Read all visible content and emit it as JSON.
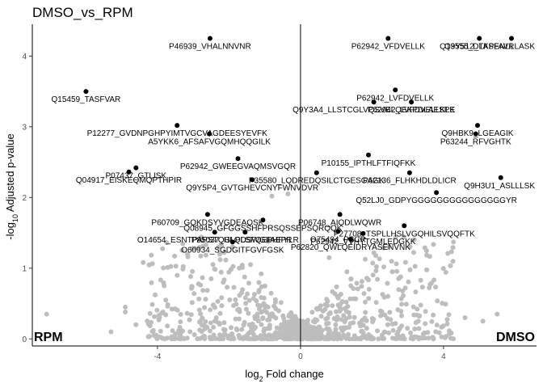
{
  "chart_data": {
    "type": "scatter",
    "title": "DMSO_vs_RPM",
    "xlabel": "log2 Fold change",
    "ylabel": "-log10 Adjusted p-value",
    "xlim": [
      -7.5,
      6.6
    ],
    "ylim": [
      -0.1,
      4.45
    ],
    "x_ticks": [
      -4,
      0,
      4
    ],
    "y_ticks": [
      0,
      1,
      2,
      3,
      4
    ],
    "grid": false,
    "vline_x": 0,
    "corner_left": "RPM",
    "corner_right": "DMSO",
    "colors": {
      "background": "#bdbdbd",
      "highlight": "#000000",
      "axis": "#000000"
    },
    "labeled_points": [
      {
        "label": "P46939_VHALNNVNR",
        "x": -2.53,
        "y": 4.25
      },
      {
        "label": "P62942_VFDVELLK",
        "x": 2.45,
        "y": 4.25
      },
      {
        "label": "Q9Y512_TASFAVR",
        "x": 5.0,
        "y": 4.25
      },
      {
        "label": "Q13555_DLKPENLLLASK",
        "x": 5.9,
        "y": 4.25
      },
      {
        "label": "Q15459_TASFVAR",
        "x": -6.0,
        "y": 3.5
      },
      {
        "label": "P62942_LVFDVELLK",
        "x": 2.65,
        "y": 3.52
      },
      {
        "label": "Q9Y3A4_LLSTCGLVQSVELQEKPDLAESPK",
        "x": 2.05,
        "y": 3.35
      },
      {
        "label": "P62942_LVFDVELLKLE",
        "x": 3.1,
        "y": 3.35
      },
      {
        "label": "P12277_GVDNPGHPYIMTVGCVAGDEESYEVFK",
        "x": -3.45,
        "y": 3.02
      },
      {
        "label": "Q9HBK9_LGEAGIK",
        "x": 4.95,
        "y": 3.02
      },
      {
        "label": "A5YKK6_AFSAFVGQMHQQGILK",
        "x": -2.55,
        "y": 2.9
      },
      {
        "label": "P63244_RFVGHTK",
        "x": 4.9,
        "y": 2.9
      },
      {
        "label": "P62942_GWEEGVAQMSVGQR",
        "x": -1.75,
        "y": 2.55
      },
      {
        "label": "P10155_IPTHLFTFIQFKK",
        "x": 1.9,
        "y": 2.6
      },
      {
        "label": "P62136_FLHKHDLDLICR",
        "x": 3.05,
        "y": 2.35
      },
      {
        "label": "P07437_GTLISK",
        "x": -4.6,
        "y": 2.42
      },
      {
        "label": "Q04917_EISKEQMQPTHPIR",
        "x": -4.8,
        "y": 2.36
      },
      {
        "label": "P35580_LQDREDQSILCTGESGAGK",
        "x": 0.45,
        "y": 2.35
      },
      {
        "label": "Q9H3U1_ASLLLSK",
        "x": 5.6,
        "y": 2.28
      },
      {
        "label": "Q9Y5P4_GVTGHEVCNYFWNVDVR",
        "x": -1.35,
        "y": 2.25
      },
      {
        "label": "Q52LJ0_GDPYGGGGGGGGGGGGGGGYR",
        "x": 3.8,
        "y": 2.07
      },
      {
        "label": "P60709_GQKDSYVGDEAQSK",
        "x": -2.6,
        "y": 1.76
      },
      {
        "label": "P06748_AIQDLWQWR",
        "x": 1.1,
        "y": 1.76
      },
      {
        "label": "P27708_TSPLLHSLVGQHILSVQQFTK",
        "x": 2.9,
        "y": 1.6
      },
      {
        "label": "Q08945_GFGGSSHFPRSQSSEPSQRQQK",
        "x": -1.05,
        "y": 1.68
      },
      {
        "label": "O75494_PSCR",
        "x": 1.05,
        "y": 1.52
      },
      {
        "label": "O14654_ESNTPAPSTQGLPDSWGIIAEPR",
        "x": -2.4,
        "y": 1.51
      },
      {
        "label": "P85037_HLQLSFQEPHFYLR",
        "x": -1.55,
        "y": 1.51
      },
      {
        "label": "P62942_VVHYTGMLEDGKK",
        "x": 1.75,
        "y": 1.49
      },
      {
        "label": "O60934_SGDGITFGVFGSK",
        "x": -1.9,
        "y": 1.37
      },
      {
        "label": "P62820_QWLQEIDRYASENVNK",
        "x": 1.4,
        "y": 1.41
      }
    ]
  }
}
